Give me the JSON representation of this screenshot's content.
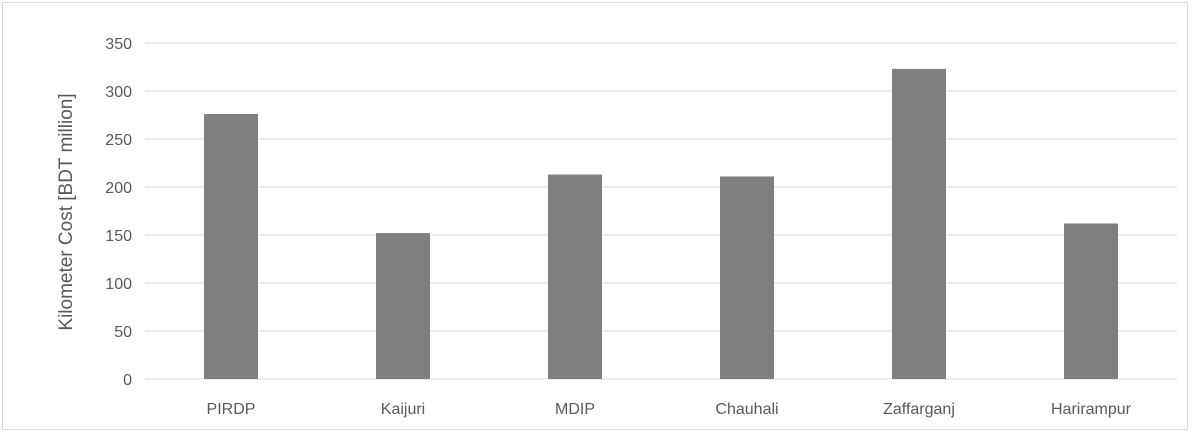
{
  "chart_data": {
    "type": "bar",
    "title": "",
    "xlabel": "",
    "ylabel": "Kilometer Cost [BDT million]",
    "categories": [
      "PIRDP",
      "Kaijuri",
      "MDIP",
      "Chauhali",
      "Zaffarganj",
      "Harirampur"
    ],
    "values": [
      276,
      152,
      213,
      211,
      323,
      162
    ],
    "ylim": [
      0,
      350
    ],
    "yticks": [
      "0",
      "50",
      "100",
      "150",
      "200",
      "250",
      "300",
      "350"
    ],
    "grid": true,
    "legend": "none",
    "colors": {
      "bar": "#7f7f7f",
      "grid": "#d9d9d9",
      "text": "#595959"
    }
  }
}
